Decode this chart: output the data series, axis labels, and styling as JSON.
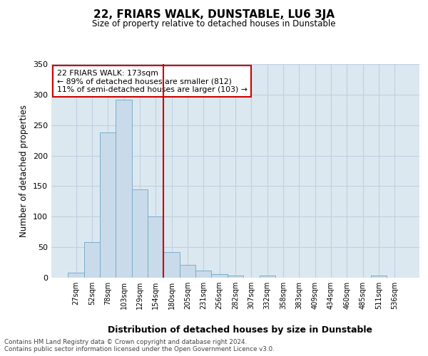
{
  "title": "22, FRIARS WALK, DUNSTABLE, LU6 3JA",
  "subtitle": "Size of property relative to detached houses in Dunstable",
  "xlabel": "Distribution of detached houses by size in Dunstable",
  "ylabel": "Number of detached properties",
  "bar_labels": [
    "27sqm",
    "52sqm",
    "78sqm",
    "103sqm",
    "129sqm",
    "154sqm",
    "180sqm",
    "205sqm",
    "231sqm",
    "256sqm",
    "282sqm",
    "307sqm",
    "332sqm",
    "358sqm",
    "383sqm",
    "409sqm",
    "434sqm",
    "460sqm",
    "485sqm",
    "511sqm",
    "536sqm"
  ],
  "bar_values": [
    8,
    58,
    238,
    292,
    145,
    100,
    42,
    21,
    12,
    6,
    4,
    0,
    3,
    0,
    0,
    0,
    0,
    0,
    0,
    3,
    0
  ],
  "bar_color": "#c9daea",
  "bar_edge_color": "#7aaecb",
  "vline_color": "#cc0000",
  "annotation_lines": [
    "22 FRIARS WALK: 173sqm",
    "← 89% of detached houses are smaller (812)",
    "11% of semi-detached houses are larger (103) →"
  ],
  "annotation_box_color": "#cc0000",
  "ylim": [
    0,
    350
  ],
  "yticks": [
    0,
    50,
    100,
    150,
    200,
    250,
    300,
    350
  ],
  "grid_color": "#c0d0e0",
  "bg_color": "#dce8f0",
  "footer_line1": "Contains HM Land Registry data © Crown copyright and database right 2024.",
  "footer_line2": "Contains public sector information licensed under the Open Government Licence v3.0."
}
